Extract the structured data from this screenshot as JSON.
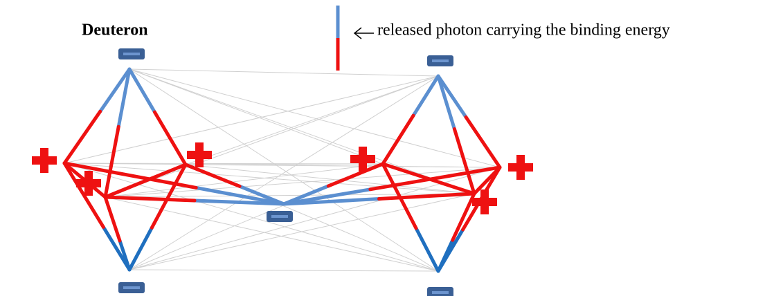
{
  "title": "Deuteron",
  "legend": {
    "label": "released photon carrying the binding energy"
  }
}
